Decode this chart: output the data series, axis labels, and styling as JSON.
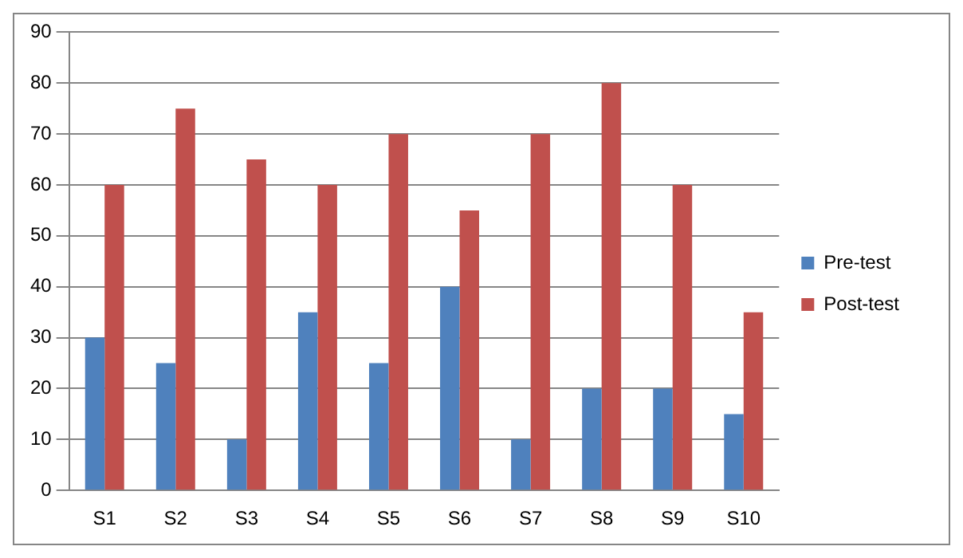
{
  "chart_data": {
    "type": "bar",
    "categories": [
      "S1",
      "S2",
      "S3",
      "S4",
      "S5",
      "S6",
      "S7",
      "S8",
      "S9",
      "S10"
    ],
    "series": [
      {
        "name": "Pre-test",
        "color": "#4f81bd",
        "values": [
          30,
          25,
          10,
          35,
          25,
          40,
          10,
          20,
          20,
          15
        ]
      },
      {
        "name": "Post-test",
        "color": "#c0504d",
        "values": [
          60,
          75,
          65,
          60,
          70,
          55,
          70,
          80,
          60,
          35
        ]
      }
    ],
    "ylim": [
      0,
      90
    ],
    "yticks": [
      0,
      10,
      20,
      30,
      40,
      50,
      60,
      70,
      80,
      90
    ],
    "grid": "y",
    "legend": "right"
  }
}
